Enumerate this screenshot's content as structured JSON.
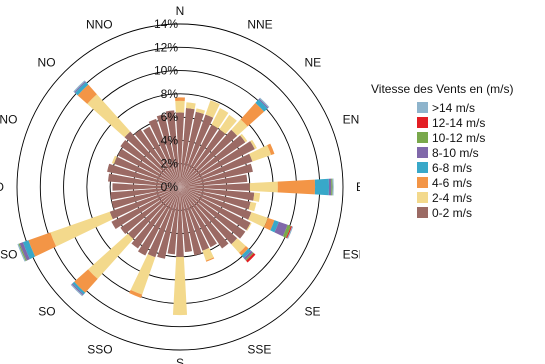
{
  "chart_data": {
    "type": "wind-rose",
    "legend_title": "Vitesse des Vents en (m/s)",
    "legend_placement": "right",
    "radial_unit": "%",
    "radial_range": [
      0,
      14
    ],
    "radial_ticks": [
      "0%",
      "2%",
      "4%",
      "6%",
      "8%",
      "10%",
      "12%",
      "14%"
    ],
    "directions": [
      "N",
      "NNE",
      "NE",
      "ENE",
      "E",
      "ESE",
      "SE",
      "SSE",
      "S",
      "SSO",
      "SO",
      "OSO",
      "O",
      "ONO",
      "NO",
      "NNO"
    ],
    "bin_width_deg": 7.5,
    "series": [
      {
        "name": "0-2 m/s",
        "color": "#9b6a64",
        "values": [
          6.4,
          6.8,
          6.6,
          6.6,
          6.0,
          6.0,
          6.6,
          6.8,
          7.2,
          6.6,
          6.4,
          5.8,
          6.0,
          6.4,
          6.2,
          6.5,
          6.8,
          6.8,
          6.6,
          6.4,
          5.8,
          5.8,
          6.0,
          5.6,
          6.0,
          5.8,
          6.3,
          6.4,
          6.6,
          6.4,
          6.0,
          6.2,
          6.6,
          6.4,
          6.0,
          6.0,
          5.8,
          6.2,
          6.4,
          6.0,
          6.0,
          6.2,
          6.4,
          6.0,
          5.8,
          6.2,
          6.4,
          6.6
        ]
      },
      {
        "name": "2-4 m/s",
        "color": "#f3d98c",
        "values": [
          1.0,
          0.5,
          0.3,
          1.3,
          1.6,
          1.5,
          1.2,
          0.2,
          0.2,
          1.7,
          0.0,
          0.0,
          2.4,
          0.5,
          0.5,
          1.5,
          0.1,
          0.0,
          1.0,
          0.0,
          0.0,
          0.9,
          0.0,
          0.0,
          5.0,
          0.0,
          0.0,
          3.4,
          0.0,
          0.0,
          4.6,
          0.0,
          0.0,
          5.4,
          0.0,
          0.0,
          0.0,
          0.0,
          0.0,
          0.2,
          0.0,
          0.0,
          4.3,
          0.0,
          0.0,
          0.0,
          0.0,
          0.0
        ]
      },
      {
        "name": "4-6 m/s",
        "color": "#f39546",
        "values": [
          0.3,
          0.0,
          0.0,
          0.0,
          0.0,
          0.0,
          1.9,
          0.0,
          0.0,
          0.3,
          0.0,
          0.0,
          3.2,
          0.0,
          0.0,
          0.6,
          0.0,
          0.0,
          0.3,
          0.0,
          0.0,
          0.1,
          0.0,
          0.0,
          0.0,
          0.0,
          0.0,
          0.3,
          0.0,
          0.0,
          1.6,
          0.0,
          0.0,
          2.0,
          0.0,
          0.0,
          0.0,
          0.0,
          0.0,
          0.0,
          0.0,
          0.0,
          1.1,
          0.0,
          0.0,
          0.0,
          0.0,
          0.0
        ]
      },
      {
        "name": "6-8 m/s",
        "color": "#38a8c9",
        "values": [
          0.0,
          0.0,
          0.0,
          0.0,
          0.0,
          0.0,
          0.4,
          0.0,
          0.0,
          0.0,
          0.0,
          0.0,
          1.2,
          0.0,
          0.0,
          0.4,
          0.0,
          0.0,
          0.3,
          0.0,
          0.0,
          0.0,
          0.0,
          0.0,
          0.0,
          0.0,
          0.0,
          0.0,
          0.0,
          0.0,
          0.2,
          0.0,
          0.0,
          0.5,
          0.0,
          0.0,
          0.0,
          0.0,
          0.0,
          0.0,
          0.0,
          0.0,
          0.3,
          0.0,
          0.0,
          0.0,
          0.0,
          0.0
        ]
      },
      {
        "name": "8-10 m/s",
        "color": "#8068aa",
        "values": [
          0.0,
          0.0,
          0.0,
          0.0,
          0.0,
          0.0,
          0.1,
          0.0,
          0.0,
          0.0,
          0.0,
          0.0,
          0.2,
          0.0,
          0.0,
          0.8,
          0.0,
          0.0,
          0.2,
          0.0,
          0.0,
          0.0,
          0.0,
          0.0,
          0.0,
          0.0,
          0.0,
          0.0,
          0.0,
          0.0,
          0.1,
          0.0,
          0.0,
          0.3,
          0.0,
          0.0,
          0.0,
          0.0,
          0.0,
          0.0,
          0.0,
          0.0,
          0.1,
          0.0,
          0.0,
          0.0,
          0.0,
          0.0
        ]
      },
      {
        "name": "10-12 m/s",
        "color": "#79a84b",
        "values": [
          0.0,
          0.0,
          0.0,
          0.0,
          0.0,
          0.0,
          0.0,
          0.0,
          0.0,
          0.0,
          0.0,
          0.0,
          0.1,
          0.0,
          0.0,
          0.3,
          0.0,
          0.0,
          0.1,
          0.0,
          0.0,
          0.0,
          0.0,
          0.0,
          0.0,
          0.0,
          0.0,
          0.0,
          0.0,
          0.0,
          0.0,
          0.0,
          0.0,
          0.1,
          0.0,
          0.0,
          0.0,
          0.0,
          0.0,
          0.0,
          0.0,
          0.0,
          0.0,
          0.0,
          0.0,
          0.0,
          0.0,
          0.0
        ]
      },
      {
        "name": "12-14 m/s",
        "color": "#e31e24",
        "values": [
          0.0,
          0.0,
          0.0,
          0.0,
          0.0,
          0.0,
          0.0,
          0.0,
          0.0,
          0.0,
          0.0,
          0.0,
          0.0,
          0.0,
          0.0,
          0.1,
          0.0,
          0.0,
          0.2,
          0.0,
          0.0,
          0.0,
          0.0,
          0.0,
          0.0,
          0.0,
          0.0,
          0.0,
          0.0,
          0.0,
          0.0,
          0.0,
          0.0,
          0.0,
          0.0,
          0.0,
          0.0,
          0.0,
          0.0,
          0.0,
          0.0,
          0.0,
          0.0,
          0.0,
          0.0,
          0.0,
          0.0,
          0.0
        ]
      },
      {
        "name": ">14 m/s",
        "color": "#8eb4cc",
        "values": [
          0.0,
          0.0,
          0.0,
          0.0,
          0.0,
          0.0,
          0.1,
          0.0,
          0.0,
          0.0,
          0.0,
          0.0,
          0.1,
          0.0,
          0.0,
          0.1,
          0.0,
          0.0,
          0.0,
          0.0,
          0.0,
          0.0,
          0.0,
          0.0,
          0.0,
          0.0,
          0.0,
          0.0,
          0.0,
          0.0,
          0.1,
          0.0,
          0.0,
          0.1,
          0.0,
          0.0,
          0.0,
          0.0,
          0.0,
          0.0,
          0.0,
          0.0,
          0.1,
          0.0,
          0.0,
          0.0,
          0.0,
          0.0
        ]
      }
    ],
    "legend_order": [
      ">14 m/s",
      "12-14 m/s",
      "10-12 m/s",
      "8-10 m/s",
      "6-8 m/s",
      "4-6 m/s",
      "2-4 m/s",
      "0-2 m/s"
    ]
  }
}
